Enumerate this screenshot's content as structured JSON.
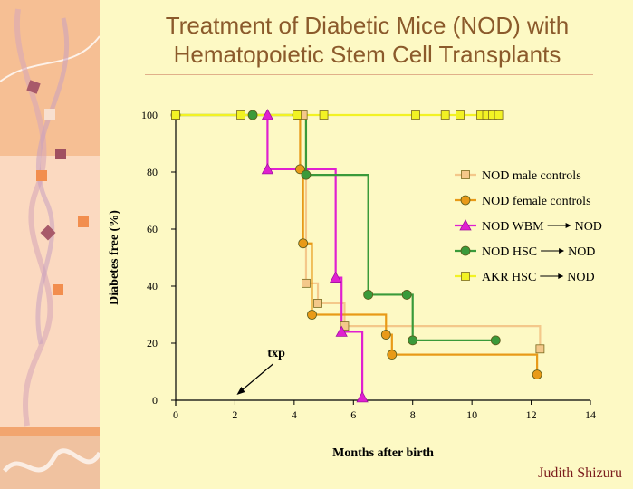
{
  "title": "Treatment of Diabetic Mice (NOD) with Hematopoietic Stem Cell Transplants",
  "author": "Judith Shizuru",
  "colors": {
    "background": "#fdf9c4",
    "side_panel": "#f4b48c",
    "male_controls": "#f4c88a",
    "female_controls": "#e89a18",
    "wbm": "#e020d0",
    "hsc": "#3a9a3a",
    "akr": "#f2f224"
  },
  "chart_data": {
    "type": "line",
    "step": true,
    "xlabel": "Months after birth",
    "ylabel": "Diabetes free  (%)",
    "xlim": [
      0,
      14
    ],
    "ylim": [
      0,
      100
    ],
    "xticks": [
      0,
      2,
      4,
      6,
      8,
      10,
      12,
      14
    ],
    "yticks": [
      0,
      20,
      40,
      60,
      80,
      100
    ],
    "annotation": {
      "text": "txp",
      "x": 2,
      "y": 0
    },
    "legend_position": "right",
    "series": [
      {
        "name": "NOD male controls",
        "legend": [
          "NOD male controls"
        ],
        "marker": "square",
        "color_key": "male_controls",
        "points": [
          [
            0,
            100
          ],
          [
            4.3,
            100
          ],
          [
            4.4,
            41
          ],
          [
            4.8,
            34
          ],
          [
            5.7,
            26
          ],
          [
            12.3,
            18
          ]
        ]
      },
      {
        "name": "NOD female controls",
        "legend": [
          "NOD female controls"
        ],
        "marker": "circle",
        "color_key": "female_controls",
        "points": [
          [
            4.1,
            100
          ],
          [
            4.2,
            81
          ],
          [
            4.3,
            55
          ],
          [
            4.6,
            30
          ],
          [
            7.1,
            23
          ],
          [
            7.3,
            16
          ],
          [
            12.2,
            9
          ]
        ]
      },
      {
        "name": "NOD WBM → NOD",
        "legend": [
          "NOD WBM",
          "NOD"
        ],
        "marker": "triangle",
        "color_key": "wbm",
        "points": [
          [
            3.1,
            100
          ],
          [
            3.1,
            81
          ],
          [
            5.4,
            43
          ],
          [
            5.6,
            24
          ],
          [
            6.3,
            1
          ]
        ]
      },
      {
        "name": "NOD HSC → NOD",
        "legend": [
          "NOD HSC",
          "NOD"
        ],
        "marker": "circle",
        "color_key": "hsc",
        "points": [
          [
            0,
            100
          ],
          [
            2.6,
            100
          ],
          [
            4.4,
            79
          ],
          [
            6.5,
            37
          ],
          [
            7.8,
            37
          ],
          [
            8,
            21
          ],
          [
            10.8,
            21
          ]
        ]
      },
      {
        "name": "AKR HSC → NOD",
        "legend": [
          "AKR HSC",
          "NOD"
        ],
        "marker": "square",
        "color_key": "akr",
        "points": [
          [
            0,
            100
          ],
          [
            2.2,
            100
          ],
          [
            4.1,
            100
          ],
          [
            5,
            100
          ],
          [
            8.1,
            100
          ],
          [
            9.1,
            100
          ],
          [
            9.6,
            100
          ],
          [
            10.3,
            100
          ],
          [
            10.5,
            100
          ],
          [
            10.7,
            100
          ],
          [
            10.9,
            100
          ]
        ]
      }
    ]
  }
}
